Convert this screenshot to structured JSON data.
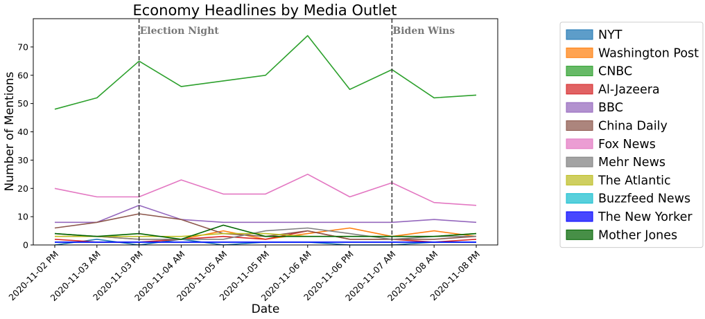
{
  "chart_data": {
    "type": "line",
    "title": "Economy Headlines by Media Outlet",
    "xlabel": "Date",
    "ylabel": "Number of Mentions",
    "categories": [
      "2020-11-02 PM",
      "2020-11-03 AM",
      "2020-11-03 PM",
      "2020-11-04 AM",
      "2020-11-05 AM",
      "2020-11-05 PM",
      "2020-11-06 AM",
      "2020-11-06 PM",
      "2020-11-07 AM",
      "2020-11-08 AM",
      "2020-11-08 PM"
    ],
    "ylim": [
      0,
      80
    ],
    "yticks": [
      0,
      10,
      20,
      30,
      40,
      50,
      60,
      70
    ],
    "grid": false,
    "legend_position": "outside-right",
    "annotations": [
      {
        "label": "Election Night",
        "x_index": 2
      },
      {
        "label": "Biden Wins",
        "x_index": 8
      }
    ],
    "series": [
      {
        "name": "NYT",
        "color": "#1f77b4",
        "values": [
          0,
          2,
          0,
          2,
          0,
          1,
          1,
          0,
          0,
          1,
          1
        ]
      },
      {
        "name": "Washington Post",
        "color": "#ff7f0e",
        "values": [
          3,
          3,
          2,
          2,
          5,
          2,
          4,
          6,
          3,
          5,
          3
        ]
      },
      {
        "name": "CNBC",
        "color": "#2ca02c",
        "values": [
          48,
          52,
          65,
          56,
          58,
          60,
          74,
          55,
          62,
          52,
          53
        ]
      },
      {
        "name": "Al-Jazeera",
        "color": "#d62728",
        "values": [
          2,
          1,
          1,
          2,
          3,
          2,
          5,
          2,
          2,
          1,
          2
        ]
      },
      {
        "name": "BBC",
        "color": "#9467bd",
        "values": [
          8,
          8,
          14,
          9,
          8,
          8,
          8,
          8,
          8,
          9,
          8
        ]
      },
      {
        "name": "China Daily",
        "color": "#8c564b",
        "values": [
          6,
          8,
          11,
          9,
          4,
          3,
          5,
          2,
          2,
          2,
          3
        ]
      },
      {
        "name": "Fox News",
        "color": "#e377c2",
        "values": [
          20,
          17,
          17,
          23,
          18,
          18,
          25,
          17,
          22,
          15,
          14
        ]
      },
      {
        "name": "Mehr News",
        "color": "#7f7f7f",
        "values": [
          4,
          3,
          2,
          2,
          2,
          5,
          6,
          4,
          2,
          3,
          3
        ]
      },
      {
        "name": "The Atlantic",
        "color": "#bcbd22",
        "values": [
          3,
          3,
          3,
          3,
          4,
          4,
          3,
          3,
          3,
          3,
          4
        ]
      },
      {
        "name": "Buzzfeed News",
        "color": "#17becf",
        "values": [
          1,
          1,
          1,
          1,
          1,
          1,
          1,
          1,
          1,
          1,
          1
        ]
      },
      {
        "name": "The New Yorker",
        "color": "#0000ff",
        "values": [
          1,
          1,
          1,
          1,
          1,
          1,
          1,
          1,
          1,
          1,
          1
        ]
      },
      {
        "name": "Mother Jones",
        "color": "#006400",
        "values": [
          4,
          3,
          4,
          2,
          7,
          3,
          3,
          3,
          3,
          3,
          4
        ]
      }
    ]
  }
}
